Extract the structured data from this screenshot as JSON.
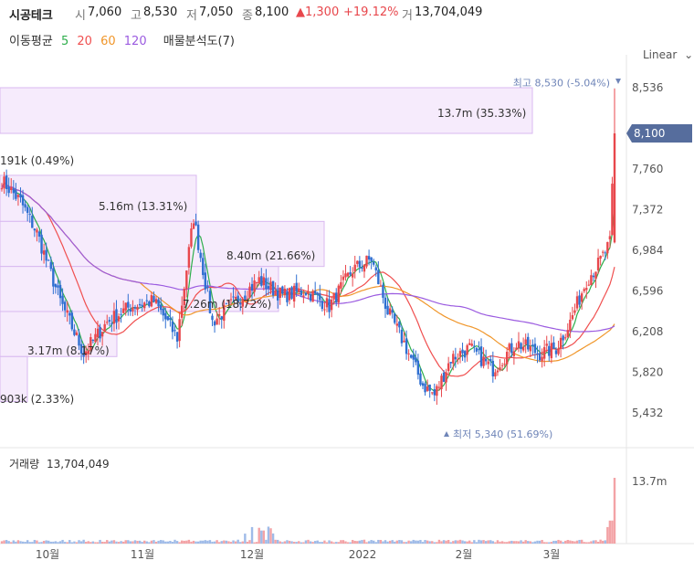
{
  "header": {
    "name": "시공테크",
    "open_label": "시",
    "open": "7,060",
    "high_label": "고",
    "high": "8,530",
    "low_label": "저",
    "low": "7,050",
    "close_label": "종",
    "close": "8,100",
    "change": "▲1,300",
    "change_pct": "+19.12%",
    "volume_label": "거",
    "volume": "13,704,049"
  },
  "moving_average": {
    "label": "이동평균",
    "periods": [
      "5",
      "20",
      "60",
      "120"
    ],
    "colors": [
      "#2eae4c",
      "#f04f4f",
      "#f0962a",
      "#9b5be0"
    ],
    "profile_label": "매물분석도(7)"
  },
  "scale_label": "Linear",
  "colors": {
    "up": "#e8474c",
    "down": "#2f6fd1",
    "profile": "#c58ce6",
    "current": "#566d9d"
  },
  "chart_data": {
    "type": "candlestick",
    "y_ticks": [
      "8,536",
      "7,760",
      "7,372",
      "6,984",
      "6,596",
      "6,208",
      "5,820",
      "5,432"
    ],
    "y_tick_values": [
      8536,
      7760,
      7372,
      6984,
      6596,
      6208,
      5820,
      5432
    ],
    "current_price": {
      "label": "8,100",
      "value": 8100
    },
    "max_marker": {
      "text": "최고 8,530 (-5.04%)",
      "value": 8530
    },
    "min_marker": {
      "text": "최저 5,340 (51.69%)",
      "value": 5340
    },
    "x_labels": [
      "10월",
      "11월",
      "12월",
      "2022",
      "2월",
      "3월"
    ],
    "volume_profile": [
      {
        "price_low": 8100,
        "price_high": 8536,
        "label": "13.7m (35.33%)",
        "share": 35.33
      },
      {
        "price_low": 7700,
        "price_high": 8100,
        "label": "191k (0.49%)",
        "share": 0.49
      },
      {
        "price_low": 7260,
        "price_high": 7700,
        "label": "5.16m (13.31%)",
        "share": 13.31
      },
      {
        "price_low": 6830,
        "price_high": 7260,
        "label": "8.40m (21.66%)",
        "share": 21.66
      },
      {
        "price_low": 6400,
        "price_high": 6830,
        "label": "7.26m (18.72%)",
        "share": 18.72
      },
      {
        "price_low": 5970,
        "price_high": 6400,
        "label": "3.17m (8.17%)",
        "share": 8.17
      },
      {
        "price_low": 5540,
        "price_high": 5970,
        "label": "903k (2.33%)",
        "share": 2.33
      }
    ],
    "volume_label": "거래량",
    "volume_value": "13,704,049",
    "volume_max_label": "13.7m"
  }
}
